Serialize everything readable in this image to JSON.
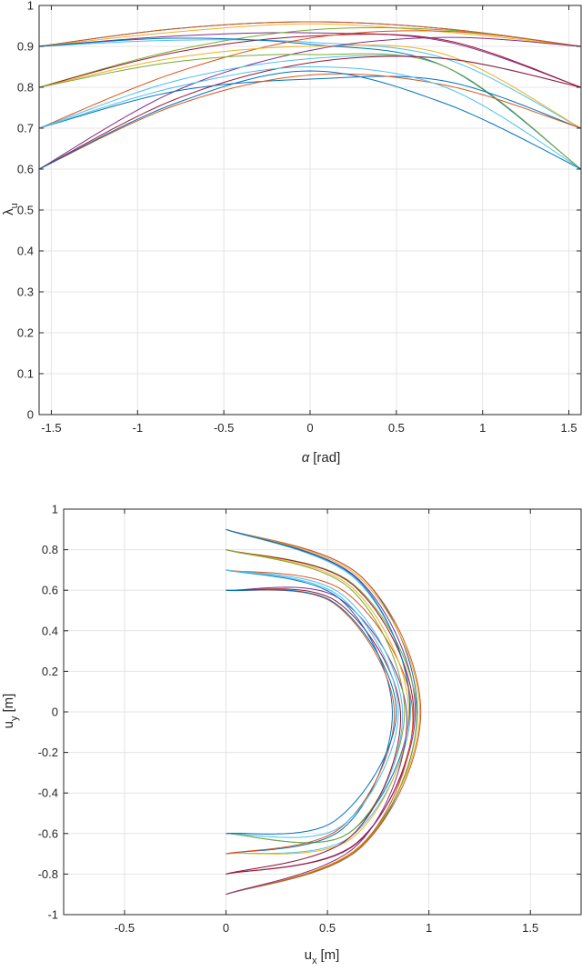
{
  "chart_data": [
    {
      "type": "line",
      "xlabel_symbol": "α",
      "xlabel_unit": "[rad]",
      "ylabel_main": "λ",
      "ylabel_sub": "u",
      "xlim": [
        -1.5708,
        1.5708
      ],
      "ylim": [
        0,
        1
      ],
      "xticks": [
        -1.5,
        -1,
        -0.5,
        0,
        0.5,
        1,
        1.5
      ],
      "xtick_labels": [
        "-1.5",
        "-1",
        "-0.5",
        "0",
        "0.5",
        "1",
        "1.5"
      ],
      "yticks": [
        0,
        0.1,
        0.2,
        0.3,
        0.4,
        0.5,
        0.6,
        0.7,
        0.8,
        0.9,
        1
      ],
      "ytick_labels": [
        "0",
        "0.1",
        "0.2",
        "0.3",
        "0.4",
        "0.5",
        "0.6",
        "0.7",
        "0.8",
        "0.9",
        "1"
      ],
      "grid": true,
      "series": [
        {
          "color": "#0072BD",
          "x": [
            -1.5708,
            -0.7854,
            0,
            0.7854,
            1.5708
          ],
          "y": [
            0.9,
            0.943,
            0.96,
            0.943,
            0.9
          ]
        },
        {
          "color": "#D95319",
          "x": [
            -1.5708,
            -0.7854,
            0,
            0.7854,
            1.5708
          ],
          "y": [
            0.9,
            0.943,
            0.96,
            0.943,
            0.9
          ]
        },
        {
          "color": "#EDB120",
          "x": [
            -1.5708,
            -0.7854,
            0,
            0.7854,
            1.5708
          ],
          "y": [
            0.9,
            0.935,
            0.955,
            0.935,
            0.9
          ]
        },
        {
          "color": "#7E2F8E",
          "x": [
            -1.5708,
            -0.7854,
            0,
            0.7854,
            1.5708
          ],
          "y": [
            0.9,
            0.925,
            0.933,
            0.912,
            0.8
          ]
        },
        {
          "color": "#77AC30",
          "x": [
            -1.5708,
            -0.7854,
            0,
            0.7854,
            1.5708
          ],
          "y": [
            0.8,
            0.89,
            0.94,
            0.94,
            0.9
          ]
        },
        {
          "color": "#4DBEEE",
          "x": [
            -1.5708,
            -0.7854,
            0,
            0.7854,
            1.5708
          ],
          "y": [
            0.9,
            0.915,
            0.91,
            0.87,
            0.7
          ]
        },
        {
          "color": "#A2142F",
          "x": [
            -1.5708,
            -0.7854,
            0,
            0.7854,
            1.5708
          ],
          "y": [
            0.8,
            0.885,
            0.925,
            0.915,
            0.8
          ]
        },
        {
          "color": "#0072BD",
          "x": [
            -1.5708,
            -0.7854,
            0,
            0.7854,
            1.5708
          ],
          "y": [
            0.9,
            0.92,
            0.905,
            0.85,
            0.6
          ]
        },
        {
          "color": "#D95319",
          "x": [
            -1.5708,
            -0.7854,
            0,
            0.7854,
            1.5708
          ],
          "y": [
            0.7,
            0.835,
            0.92,
            0.937,
            0.9
          ]
        },
        {
          "color": "#EDB120",
          "x": [
            -1.5708,
            -0.7854,
            0,
            0.7854,
            1.5708
          ],
          "y": [
            0.8,
            0.872,
            0.9,
            0.88,
            0.7
          ]
        },
        {
          "color": "#7E2F8E",
          "x": [
            -1.5708,
            -0.7854,
            0,
            0.7854,
            1.5708
          ],
          "y": [
            0.6,
            0.79,
            0.89,
            0.922,
            0.9
          ]
        },
        {
          "color": "#77AC30",
          "x": [
            -1.5708,
            -0.7854,
            0,
            0.7854,
            1.5708
          ],
          "y": [
            0.8,
            0.862,
            0.88,
            0.85,
            0.6
          ]
        },
        {
          "color": "#4DBEEE",
          "x": [
            -1.5708,
            -0.7854,
            0,
            0.7854,
            1.5708
          ],
          "y": [
            0.7,
            0.815,
            0.87,
            0.87,
            0.8
          ]
        },
        {
          "color": "#A2142F",
          "x": [
            -1.5708,
            -0.7854,
            0,
            0.7854,
            1.5708
          ],
          "y": [
            0.6,
            0.77,
            0.86,
            0.87,
            0.8
          ]
        },
        {
          "color": "#0072BD",
          "x": [
            -1.5708,
            -0.7854,
            0,
            0.7854,
            1.5708
          ],
          "y": [
            0.7,
            0.79,
            0.82,
            0.815,
            0.7
          ]
        },
        {
          "color": "#D95319",
          "x": [
            -1.5708,
            -0.7854,
            0,
            0.7854,
            1.5708
          ],
          "y": [
            0.6,
            0.755,
            0.83,
            0.805,
            0.7
          ]
        },
        {
          "color": "#4DBEEE",
          "x": [
            -1.5708,
            -0.7854,
            0,
            0.7854,
            1.5708
          ],
          "y": [
            0.7,
            0.8,
            0.85,
            0.8,
            0.6
          ]
        },
        {
          "color": "#0072BD",
          "x": [
            -1.5708,
            -0.7854,
            0,
            0.7854,
            1.5708
          ],
          "y": [
            0.6,
            0.76,
            0.84,
            0.76,
            0.6
          ]
        }
      ]
    },
    {
      "type": "line",
      "xlabel_main": "u",
      "xlabel_sub": "x",
      "xlabel_unit": "[m]",
      "ylabel_main": "u",
      "ylabel_sub": "y",
      "ylabel_unit": "[m]",
      "xlim": [
        -0.8,
        1.75
      ],
      "ylim": [
        -1,
        1
      ],
      "xticks": [
        -0.5,
        0,
        0.5,
        1,
        1.5
      ],
      "xtick_labels": [
        "-0.5",
        "0",
        "0.5",
        "1",
        "1.5"
      ],
      "yticks": [
        -1,
        -0.8,
        -0.6,
        -0.4,
        -0.2,
        0,
        0.2,
        0.4,
        0.6,
        0.8,
        1
      ],
      "ytick_labels": [
        "-1",
        "-0.8",
        "-0.6",
        "-0.4",
        "-0.2",
        "0",
        "0.2",
        "0.4",
        "0.6",
        "0.8",
        "1"
      ],
      "grid": true,
      "series": [
        {
          "color": "#0072BD",
          "x": [
            0,
            0.667,
            0.943,
            0.667,
            0
          ],
          "y": [
            0.9,
            0.667,
            0,
            -0.667,
            -0.9
          ]
        },
        {
          "color": "#D95319",
          "x": [
            0,
            0.667,
            0.96,
            0.667,
            0
          ],
          "y": [
            0.9,
            0.667,
            0,
            -0.667,
            -0.9
          ]
        },
        {
          "color": "#EDB120",
          "x": [
            0,
            0.66,
            0.955,
            0.661,
            0
          ],
          "y": [
            0.9,
            0.661,
            0,
            -0.66,
            -0.9
          ]
        },
        {
          "color": "#7E2F8E",
          "x": [
            0,
            0.654,
            0.933,
            0.645,
            0
          ],
          "y": [
            0.9,
            0.654,
            0,
            -0.645,
            -0.8
          ]
        },
        {
          "color": "#77AC30",
          "x": [
            0,
            0.629,
            0.94,
            0.665,
            0
          ],
          "y": [
            0.8,
            0.629,
            0,
            -0.665,
            -0.9
          ]
        },
        {
          "color": "#4DBEEE",
          "x": [
            0,
            0.647,
            0.91,
            0.615,
            0
          ],
          "y": [
            0.9,
            0.647,
            0,
            -0.615,
            -0.7
          ]
        },
        {
          "color": "#A2142F",
          "x": [
            0,
            0.626,
            0.925,
            0.647,
            0
          ],
          "y": [
            0.8,
            0.626,
            0,
            -0.647,
            -0.8
          ]
        },
        {
          "color": "#0072BD",
          "x": [
            0,
            0.651,
            0.905,
            0.601,
            0
          ],
          "y": [
            0.9,
            0.651,
            0,
            -0.601,
            -0.6
          ]
        },
        {
          "color": "#D95319",
          "x": [
            0,
            0.59,
            0.92,
            0.663,
            0
          ],
          "y": [
            0.7,
            0.59,
            0,
            -0.663,
            -0.9
          ]
        },
        {
          "color": "#EDB120",
          "x": [
            0,
            0.617,
            0.9,
            0.622,
            0
          ],
          "y": [
            0.8,
            0.617,
            0,
            -0.622,
            -0.7
          ]
        },
        {
          "color": "#7E2F8E",
          "x": [
            0,
            0.559,
            0.89,
            0.652,
            0
          ],
          "y": [
            0.6,
            0.559,
            0,
            -0.652,
            -0.9
          ]
        },
        {
          "color": "#77AC30",
          "x": [
            0,
            0.61,
            0.88,
            0.601,
            0
          ],
          "y": [
            0.8,
            0.61,
            0,
            -0.601,
            -0.6
          ]
        },
        {
          "color": "#4DBEEE",
          "x": [
            0,
            0.576,
            0.87,
            0.615,
            0
          ],
          "y": [
            0.7,
            0.576,
            0,
            -0.615,
            -0.8
          ]
        },
        {
          "color": "#A2142F",
          "x": [
            0,
            0.545,
            0.86,
            0.615,
            0
          ],
          "y": [
            0.6,
            0.545,
            0,
            -0.615,
            -0.8
          ]
        },
        {
          "color": "#0072BD",
          "x": [
            0,
            0.559,
            0.82,
            0.576,
            0
          ],
          "y": [
            0.7,
            0.559,
            0,
            -0.576,
            -0.7
          ]
        },
        {
          "color": "#D95319",
          "x": [
            0,
            0.534,
            0.83,
            0.569,
            0
          ],
          "y": [
            0.6,
            0.534,
            0,
            -0.569,
            -0.7
          ]
        },
        {
          "color": "#4DBEEE",
          "x": [
            0,
            0.566,
            0.85,
            0.566,
            0
          ],
          "y": [
            0.7,
            0.566,
            0,
            -0.566,
            -0.6
          ]
        },
        {
          "color": "#0072BD",
          "x": [
            0,
            0.537,
            0.84,
            0.537,
            0
          ],
          "y": [
            0.6,
            0.537,
            0,
            -0.537,
            -0.6
          ]
        }
      ]
    }
  ]
}
